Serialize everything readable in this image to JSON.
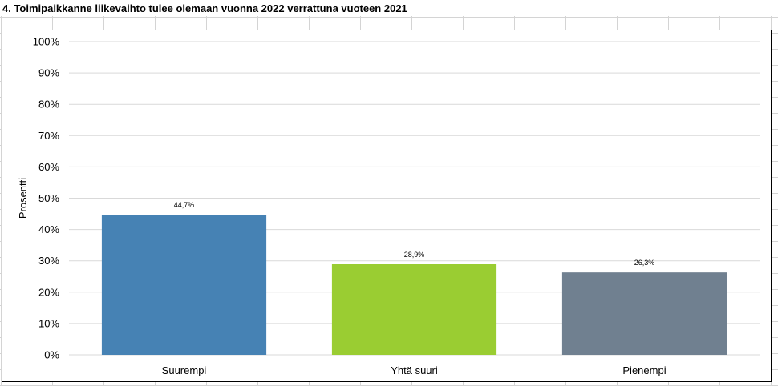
{
  "sheet": {
    "title": "4. Toimipaikkanne liikevaihto tulee olemaan vuonna 2022 verrattuna vuoteen 2021"
  },
  "chart_data": {
    "type": "bar",
    "categories": [
      "Suurempi",
      "Yhtä suuri",
      "Pienempi"
    ],
    "values": [
      44.7,
      28.9,
      26.3
    ],
    "data_labels": [
      "44,7%",
      "28,9%",
      "26,3%"
    ],
    "colors": [
      "#4682b4",
      "#9acd32",
      "#708090"
    ],
    "ylabel": "Prosentti",
    "ylim": [
      0,
      100
    ],
    "yticks": [
      0,
      10,
      20,
      30,
      40,
      50,
      60,
      70,
      80,
      90,
      100
    ],
    "ytick_labels": [
      "0%",
      "10%",
      "20%",
      "30%",
      "40%",
      "50%",
      "60%",
      "70%",
      "80%",
      "90%",
      "100%"
    ],
    "grid": true,
    "legend": "none"
  }
}
